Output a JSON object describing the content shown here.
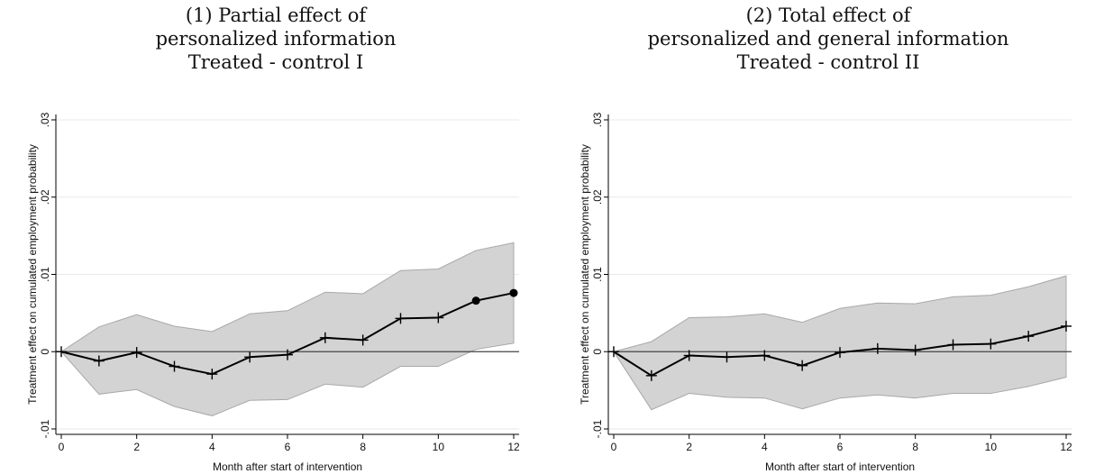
{
  "chart_data": [
    {
      "type": "line",
      "title_lines": [
        "(1) Partial effect of",
        "personalized information",
        "Treated - control I"
      ],
      "xlabel": "Month after start of intervention",
      "ylabel": "Treatment effect on cumulated employment probability",
      "xlim": [
        0,
        12
      ],
      "ylim": [
        -0.01,
        0.03
      ],
      "xticks": [
        0,
        2,
        4,
        6,
        8,
        10,
        12
      ],
      "xtick_labels": [
        "0",
        "2",
        "4",
        "6",
        "8",
        "10",
        "12"
      ],
      "yticks": [
        -0.01,
        0,
        0.01,
        0.02,
        0.03
      ],
      "ytick_labels": [
        "-.01",
        "0",
        ".01",
        ".02",
        ".03"
      ],
      "grid": true,
      "reference_line": 0,
      "series": [
        {
          "x": [
            0,
            1,
            2,
            3,
            4,
            5,
            6,
            7,
            8,
            9,
            10,
            11,
            12
          ],
          "values": [
            0,
            -0.0012,
            -0.0001,
            -0.0019,
            -0.0029,
            -0.0007,
            -0.0004,
            0.0018,
            0.0015,
            0.0043,
            0.0044,
            0.0066,
            0.0076
          ],
          "ci_lower": [
            0,
            -0.0055,
            -0.0049,
            -0.0071,
            -0.0083,
            -0.0063,
            -0.0062,
            -0.0042,
            -0.0046,
            -0.0019,
            -0.0019,
            0.0003,
            0.0011
          ],
          "ci_upper": [
            0,
            0.0032,
            0.0048,
            0.0033,
            0.0026,
            0.0049,
            0.0053,
            0.0077,
            0.0075,
            0.0105,
            0.0107,
            0.0131,
            0.0141
          ],
          "markers": [
            "plus",
            "plus",
            "plus",
            "plus",
            "plus",
            "plus",
            "plus",
            "plus",
            "plus",
            "plus",
            "plus",
            "dot",
            "dot"
          ]
        }
      ]
    },
    {
      "type": "line",
      "title_lines": [
        "(2) Total effect of",
        "personalized and general information",
        "Treated - control II"
      ],
      "xlabel": "Month after start of intervention",
      "ylabel": "Treatment effect on cumulated employment probability",
      "xlim": [
        0,
        12
      ],
      "ylim": [
        -0.01,
        0.03
      ],
      "xticks": [
        0,
        2,
        4,
        6,
        8,
        10,
        12
      ],
      "xtick_labels": [
        "0",
        "2",
        "4",
        "6",
        "8",
        "10",
        "12"
      ],
      "yticks": [
        -0.01,
        0,
        0.01,
        0.02,
        0.03
      ],
      "ytick_labels": [
        "-.01",
        "0",
        ".01",
        ".02",
        ".03"
      ],
      "grid": true,
      "reference_line": 0,
      "series": [
        {
          "x": [
            0,
            1,
            2,
            3,
            4,
            5,
            6,
            7,
            8,
            9,
            10,
            11,
            12
          ],
          "values": [
            0,
            -0.0031,
            -0.0005,
            -0.0007,
            -0.0005,
            -0.0018,
            -0.0001,
            0.0004,
            0.0002,
            0.0009,
            0.001,
            0.002,
            0.0033
          ],
          "ci_lower": [
            0,
            -0.0075,
            -0.0054,
            -0.0059,
            -0.006,
            -0.0074,
            -0.006,
            -0.0056,
            -0.006,
            -0.0054,
            -0.0054,
            -0.0045,
            -0.0033
          ],
          "ci_upper": [
            0,
            0.0013,
            0.0044,
            0.0045,
            0.0049,
            0.0038,
            0.0056,
            0.0063,
            0.0062,
            0.0071,
            0.0073,
            0.0084,
            0.0098
          ],
          "markers": [
            "plus",
            "plus",
            "plus",
            "plus",
            "plus",
            "plus",
            "plus",
            "plus",
            "plus",
            "plus",
            "plus",
            "plus",
            "plus"
          ]
        }
      ]
    }
  ]
}
